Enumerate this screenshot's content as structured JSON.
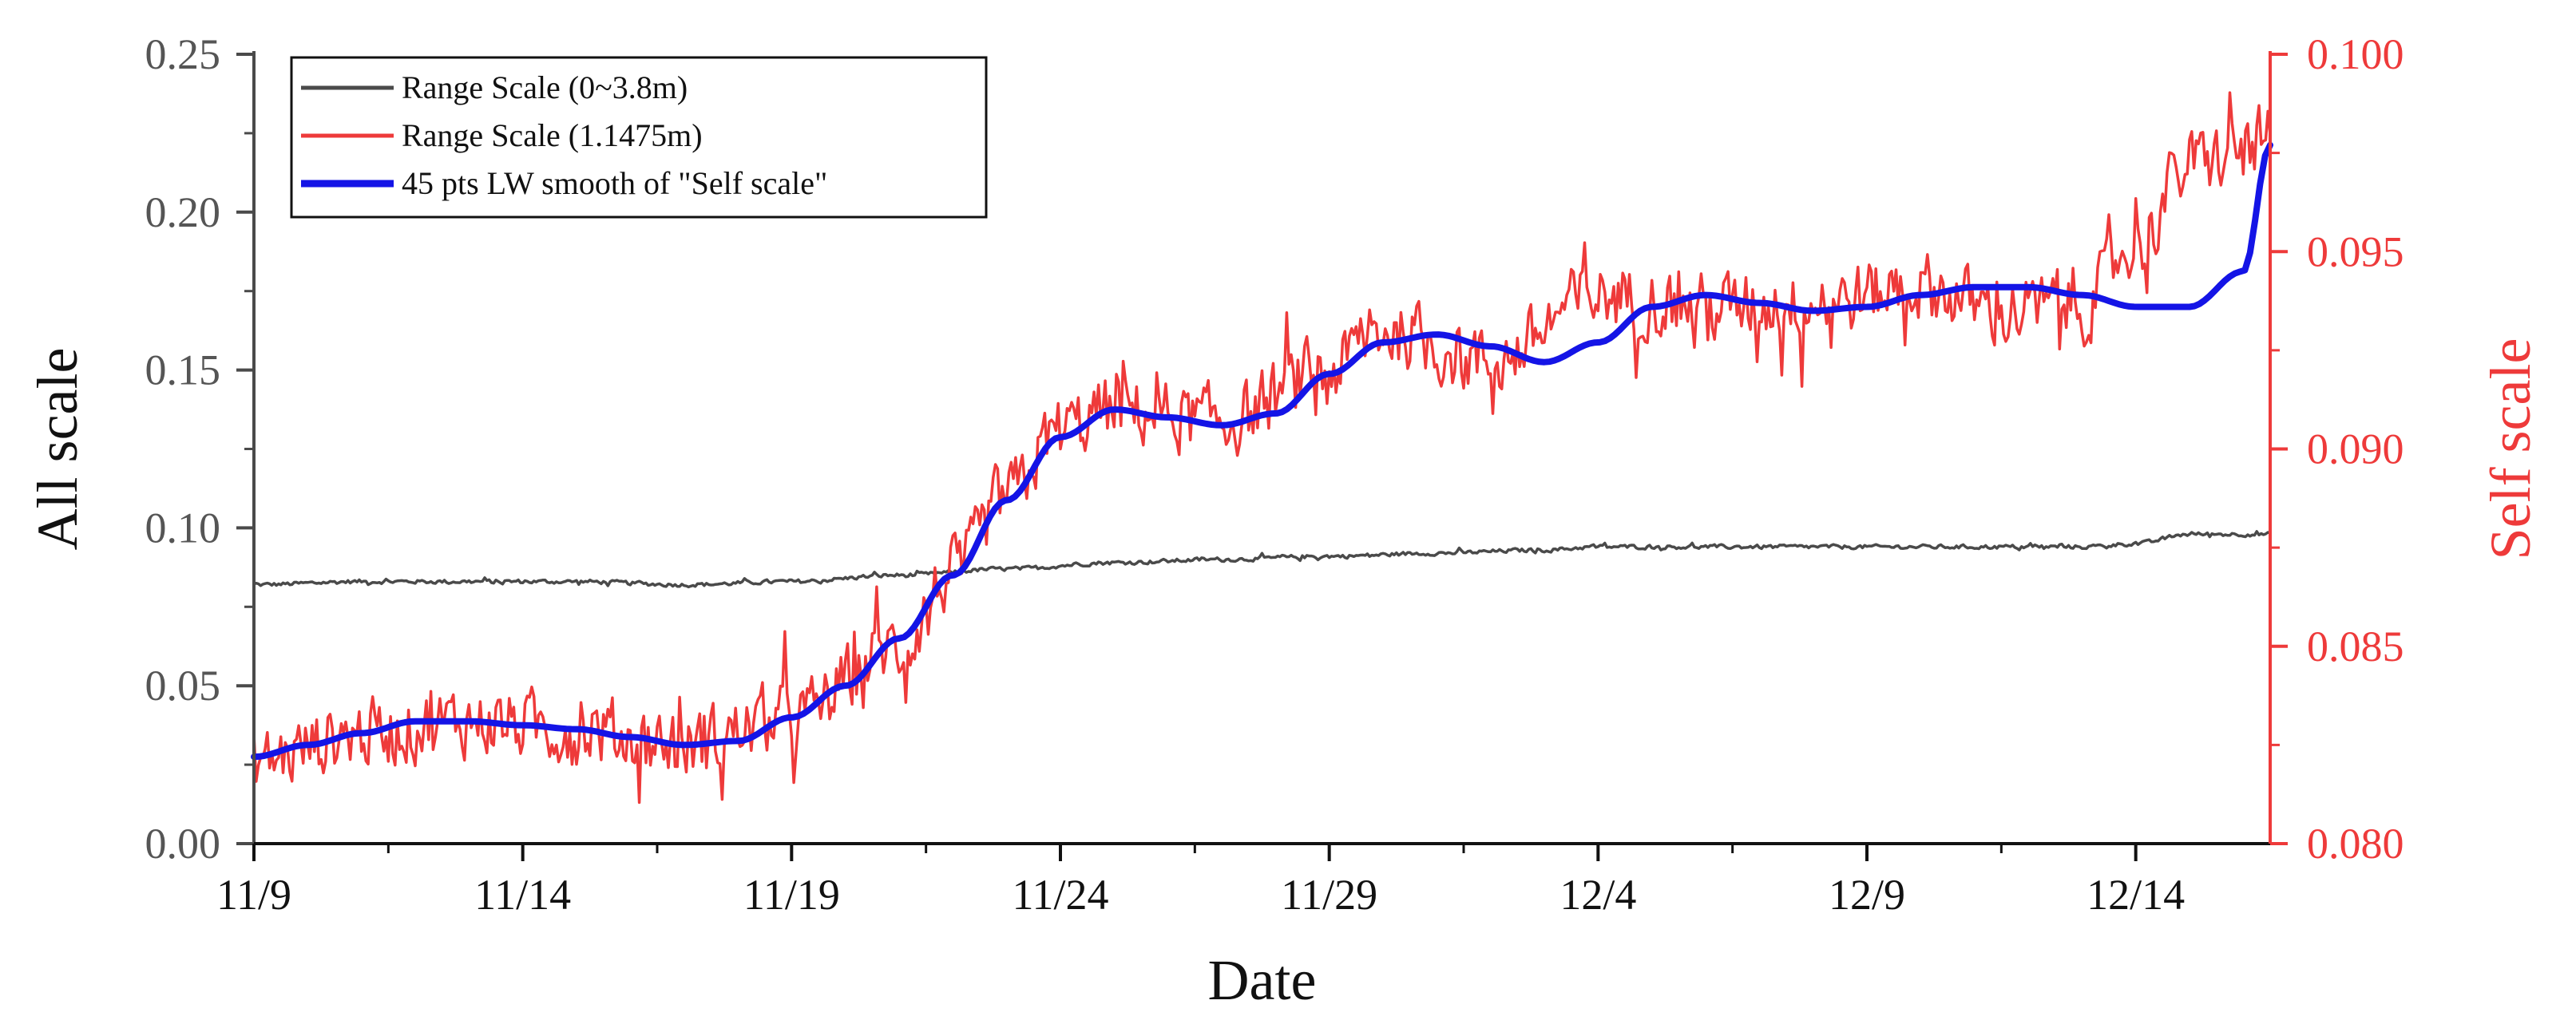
{
  "chart_data": {
    "type": "line",
    "xlabel": "Date",
    "ylabel_left": "All scale",
    "ylabel_right": "Self scale",
    "x_range": [
      0,
      37.5
    ],
    "x_unit": "days since 11/9",
    "ylim_left": [
      0.0,
      0.25
    ],
    "ylim_right": [
      0.08,
      0.1
    ],
    "x_ticks": [
      {
        "x": 0,
        "label": "11/9"
      },
      {
        "x": 5,
        "label": "11/14"
      },
      {
        "x": 10,
        "label": "11/19"
      },
      {
        "x": 15,
        "label": "11/24"
      },
      {
        "x": 20,
        "label": "11/29"
      },
      {
        "x": 25,
        "label": "12/4"
      },
      {
        "x": 30,
        "label": "12/9"
      },
      {
        "x": 35,
        "label": "12/14"
      }
    ],
    "y_ticks_left": [
      {
        "v": 0.0,
        "label": "0.00"
      },
      {
        "v": 0.05,
        "label": "0.05"
      },
      {
        "v": 0.1,
        "label": "0.10"
      },
      {
        "v": 0.15,
        "label": "0.15"
      },
      {
        "v": 0.2,
        "label": "0.20"
      },
      {
        "v": 0.25,
        "label": "0.25"
      }
    ],
    "y_ticks_right": [
      {
        "v": 0.08,
        "label": "0.080"
      },
      {
        "v": 0.085,
        "label": "0.085"
      },
      {
        "v": 0.09,
        "label": "0.090"
      },
      {
        "v": 0.095,
        "label": "0.095"
      },
      {
        "v": 0.1,
        "label": "0.100"
      }
    ],
    "legend_position": "top-left",
    "series": [
      {
        "name": "Range Scale (0~3.8m)",
        "axis": "left",
        "color": "#4a4a4a",
        "noise": 0.0009,
        "x": [
          0,
          2,
          4,
          6,
          8,
          10,
          12,
          14,
          16,
          18,
          20,
          22,
          24,
          25,
          26,
          28,
          30,
          32,
          34,
          35,
          36,
          37.5
        ],
        "values": [
          0.082,
          0.083,
          0.083,
          0.083,
          0.082,
          0.083,
          0.085,
          0.087,
          0.089,
          0.09,
          0.091,
          0.092,
          0.093,
          0.094,
          0.094,
          0.094,
          0.094,
          0.094,
          0.094,
          0.095,
          0.098,
          0.098
        ]
      },
      {
        "name": "Range Scale  (1.1475m)",
        "axis": "right",
        "color": "#ee3a3a",
        "noise": 0.0012,
        "x": [
          0,
          2,
          4,
          6,
          8,
          10,
          12,
          13,
          14,
          15,
          16,
          18,
          20,
          21,
          23,
          25,
          27,
          29,
          31,
          32.5,
          34,
          35,
          36,
          37.5
        ],
        "values": [
          0.0821,
          0.0828,
          0.0831,
          0.0829,
          0.0825,
          0.0832,
          0.085,
          0.0868,
          0.0888,
          0.0905,
          0.091,
          0.0907,
          0.092,
          0.093,
          0.0922,
          0.0939,
          0.0936,
          0.0937,
          0.0941,
          0.0935,
          0.0936,
          0.0952,
          0.0972,
          0.0978
        ]
      },
      {
        "name": "45 pts LW smooth of \"Self scale\"",
        "axis": "right",
        "color": "#1414e6",
        "noise": 0,
        "x": [
          0,
          1,
          2,
          3,
          4,
          5,
          6,
          7,
          8,
          9,
          10,
          11,
          12,
          13,
          14,
          15,
          16,
          17,
          18,
          19,
          20,
          21,
          22,
          23,
          24,
          25,
          26,
          27,
          28,
          29,
          30,
          31,
          32,
          33,
          34,
          35,
          36,
          37,
          37.5
        ],
        "values": [
          0.0822,
          0.0825,
          0.0828,
          0.0831,
          0.0831,
          0.083,
          0.0829,
          0.0827,
          0.0825,
          0.0826,
          0.0832,
          0.084,
          0.0852,
          0.0868,
          0.0887,
          0.0903,
          0.091,
          0.0908,
          0.0906,
          0.0909,
          0.0919,
          0.0927,
          0.0929,
          0.0926,
          0.0922,
          0.0927,
          0.0936,
          0.0939,
          0.0937,
          0.0935,
          0.0936,
          0.0939,
          0.0941,
          0.0941,
          0.0939,
          0.0936,
          0.0936,
          0.0945,
          0.0977
        ]
      }
    ]
  }
}
